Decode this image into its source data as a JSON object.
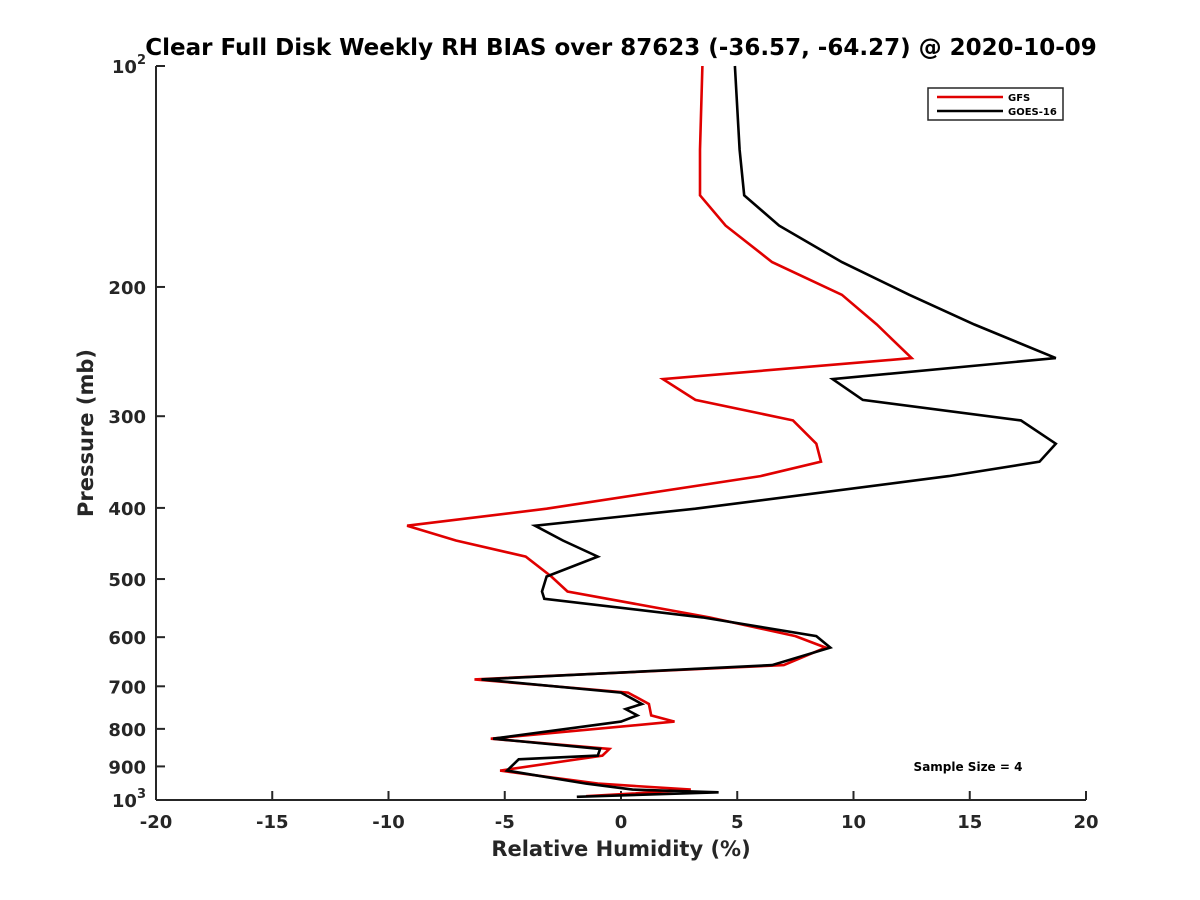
{
  "chart_data": {
    "type": "line",
    "title": "Clear Full Disk Weekly RH BIAS over 87623 (-36.57, -64.27) @ 2020-10-09",
    "xlabel": "Relative Humidity (%)",
    "ylabel": "Pressure (mb)",
    "xlim": [
      -20,
      20
    ],
    "ylim": [
      100,
      1000
    ],
    "y_scale": "log",
    "y_reversed": true,
    "grid": false,
    "legend_position": "top-right",
    "x_ticks": [
      -20,
      -15,
      -10,
      -5,
      0,
      5,
      10,
      15,
      20
    ],
    "x_tick_labels": [
      "-20",
      "-15",
      "-10",
      "-5",
      "0",
      "5",
      "10",
      "15",
      "20"
    ],
    "y_ticks": [
      {
        "value": 100,
        "base": "10",
        "exp": "2"
      },
      {
        "value": 200,
        "label": "200"
      },
      {
        "value": 300,
        "label": "300"
      },
      {
        "value": 400,
        "label": "400"
      },
      {
        "value": 500,
        "label": "500"
      },
      {
        "value": 600,
        "label": "600"
      },
      {
        "value": 700,
        "label": "700"
      },
      {
        "value": 800,
        "label": "800"
      },
      {
        "value": 900,
        "label": "900"
      },
      {
        "value": 1000,
        "base": "10",
        "exp": "3"
      }
    ],
    "annotation": "Sample Size = 4",
    "series": [
      {
        "name": "GFS",
        "color": "#e00000",
        "points": [
          {
            "x": 3.5,
            "p": 100
          },
          {
            "x": 3.4,
            "p": 130
          },
          {
            "x": 3.4,
            "p": 150
          },
          {
            "x": 4.5,
            "p": 165
          },
          {
            "x": 6.5,
            "p": 185
          },
          {
            "x": 9.5,
            "p": 205
          },
          {
            "x": 11.0,
            "p": 225
          },
          {
            "x": 12.5,
            "p": 250
          },
          {
            "x": 1.8,
            "p": 267
          },
          {
            "x": 3.2,
            "p": 285
          },
          {
            "x": 7.4,
            "p": 304
          },
          {
            "x": 8.4,
            "p": 327
          },
          {
            "x": 8.6,
            "p": 346
          },
          {
            "x": 6.0,
            "p": 362
          },
          {
            "x": -3.2,
            "p": 401
          },
          {
            "x": -9.2,
            "p": 423
          },
          {
            "x": -7.1,
            "p": 443
          },
          {
            "x": -4.1,
            "p": 466
          },
          {
            "x": -3.0,
            "p": 496
          },
          {
            "x": -2.3,
            "p": 520
          },
          {
            "x": 3.8,
            "p": 564
          },
          {
            "x": 7.5,
            "p": 598
          },
          {
            "x": 8.8,
            "p": 620
          },
          {
            "x": 7.0,
            "p": 655
          },
          {
            "x": -6.3,
            "p": 685
          },
          {
            "x": 0.3,
            "p": 714
          },
          {
            "x": 1.2,
            "p": 740
          },
          {
            "x": 1.3,
            "p": 767
          },
          {
            "x": 2.3,
            "p": 782
          },
          {
            "x": -5.6,
            "p": 825
          },
          {
            "x": -0.5,
            "p": 852
          },
          {
            "x": -0.8,
            "p": 870
          },
          {
            "x": -5.2,
            "p": 912
          },
          {
            "x": -1.0,
            "p": 950
          },
          {
            "x": 3.0,
            "p": 968
          },
          {
            "x": 0.5,
            "p": 980
          },
          {
            "x": -1.5,
            "p": 988
          }
        ]
      },
      {
        "name": "GOES-16",
        "color": "#000000",
        "points": [
          {
            "x": 4.9,
            "p": 100
          },
          {
            "x": 5.1,
            "p": 130
          },
          {
            "x": 5.3,
            "p": 150
          },
          {
            "x": 6.8,
            "p": 165
          },
          {
            "x": 9.5,
            "p": 185
          },
          {
            "x": 12.4,
            "p": 205
          },
          {
            "x": 15.2,
            "p": 225
          },
          {
            "x": 18.7,
            "p": 250
          },
          {
            "x": 9.1,
            "p": 267
          },
          {
            "x": 10.4,
            "p": 285
          },
          {
            "x": 17.2,
            "p": 304
          },
          {
            "x": 18.7,
            "p": 327
          },
          {
            "x": 18.0,
            "p": 346
          },
          {
            "x": 14.1,
            "p": 362
          },
          {
            "x": 3.2,
            "p": 401
          },
          {
            "x": -3.7,
            "p": 423
          },
          {
            "x": -2.5,
            "p": 443
          },
          {
            "x": -1.0,
            "p": 466
          },
          {
            "x": -3.2,
            "p": 496
          },
          {
            "x": -3.4,
            "p": 520
          },
          {
            "x": -3.3,
            "p": 532
          },
          {
            "x": 3.5,
            "p": 564
          },
          {
            "x": 8.4,
            "p": 598
          },
          {
            "x": 9.0,
            "p": 620
          },
          {
            "x": 6.5,
            "p": 655
          },
          {
            "x": -6.0,
            "p": 685
          },
          {
            "x": 0.0,
            "p": 714
          },
          {
            "x": 0.9,
            "p": 740
          },
          {
            "x": 0.2,
            "p": 752
          },
          {
            "x": 0.7,
            "p": 767
          },
          {
            "x": 0.0,
            "p": 782
          },
          {
            "x": -5.5,
            "p": 825
          },
          {
            "x": -0.9,
            "p": 852
          },
          {
            "x": -1.0,
            "p": 870
          },
          {
            "x": -4.4,
            "p": 880
          },
          {
            "x": -4.9,
            "p": 912
          },
          {
            "x": -1.5,
            "p": 950
          },
          {
            "x": 0.5,
            "p": 968
          },
          {
            "x": 4.2,
            "p": 976
          },
          {
            "x": -1.9,
            "p": 990
          }
        ]
      }
    ]
  }
}
